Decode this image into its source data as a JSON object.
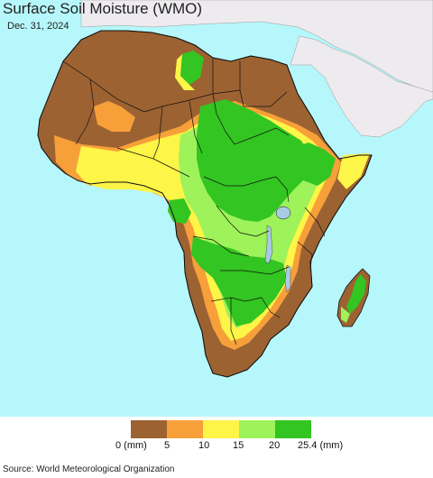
{
  "title": "Surface Soil Moisture (WMO)",
  "date": "Dec. 31, 2024",
  "legend": {
    "colors": [
      "#9c6232",
      "#f7a03a",
      "#fdf547",
      "#9ef25a",
      "#33c521"
    ],
    "tick_labels": [
      "0 (mm)",
      "5",
      "10",
      "15",
      "20",
      "25.4 (mm)"
    ]
  },
  "source": "Source: World Meteorological Organization",
  "colors": {
    "ocean": "#b6f7fb",
    "outside_land": "#eeebef",
    "dry": "#9c6232",
    "low": "#f7a03a",
    "mid": "#fdf547",
    "moist": "#9ef25a",
    "wet": "#33c521",
    "lake": "#a9cbe6",
    "border": "#111111"
  }
}
